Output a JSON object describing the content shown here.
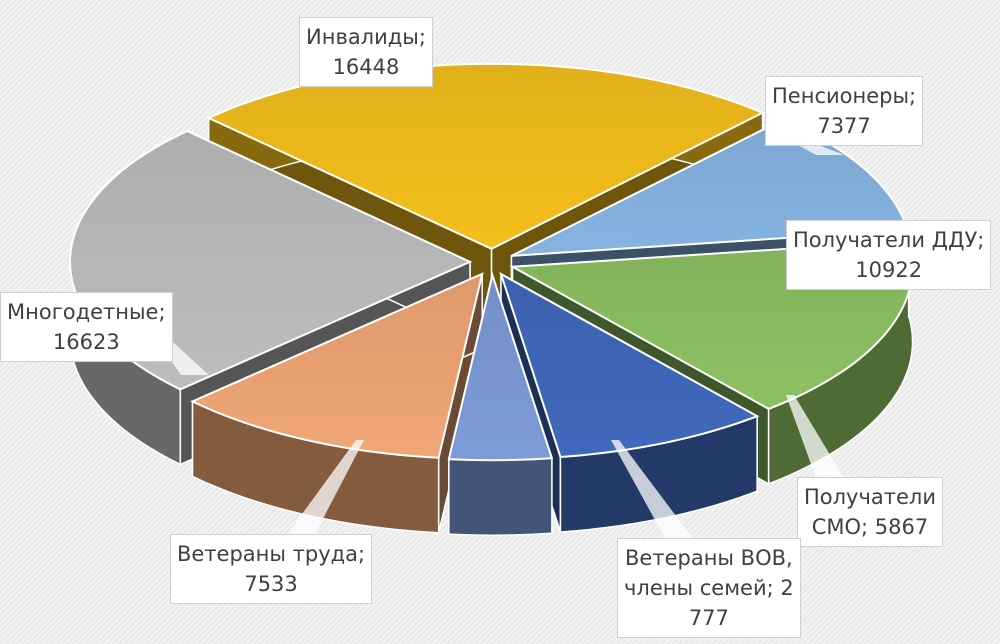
{
  "chart_data": {
    "type": "pie",
    "style": "3d-exploded",
    "title": "",
    "slices": [
      {
        "name": "Инвалиды",
        "value": 16448,
        "label": "Инвалиды;\n16448",
        "color": "#f5bf1c"
      },
      {
        "name": "Пенсионеры",
        "value": 7377,
        "label": "Пенсионеры;\n7377",
        "color": "#86b4e2"
      },
      {
        "name": "Получатели ДДУ",
        "value": 10922,
        "label": "Получатели ДДУ;\n10922",
        "color": "#8dc262"
      },
      {
        "name": "Получатели СМО",
        "value": 5867,
        "label": "Получатели\nСМО; 5867",
        "color": "#4069bd"
      },
      {
        "name": "Ветераны ВОВ, члены семей",
        "value": 2777,
        "label": "Ветераны ВОВ,\nчлены семей; 2\n777",
        "color": "#7d9bd8"
      },
      {
        "name": "Ветераны труда",
        "value": 7533,
        "label": "Ветераны труда;\n7533",
        "color": "#f1a675"
      },
      {
        "name": "Многодетные",
        "value": 16623,
        "label": "Многодетные;\n16623",
        "color": "#bdbdbd"
      }
    ],
    "legend": "none",
    "data_labels": "category; value"
  }
}
